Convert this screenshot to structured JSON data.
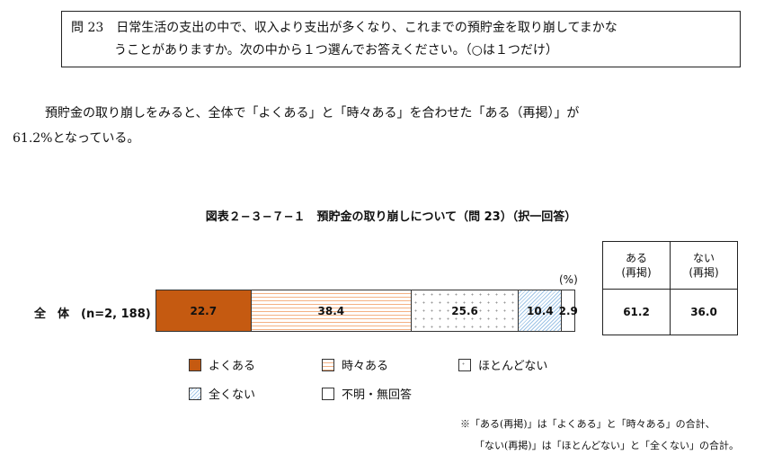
{
  "question": {
    "line1": "問 23　日常生活の支出の中で、収入より支出が多くなり、これまでの預貯金を取り崩してまかな",
    "line2": "うことがありますか。次の中から１つ選んでお答えください。（○は１つだけ）"
  },
  "paragraph": {
    "line1": "預貯金の取り崩しをみると、全体で「よくある」と「時々ある」を合わせた「ある（再掲）」が",
    "line2": "61.2%となっている。"
  },
  "chart_data": {
    "type": "stacked-bar-horizontal",
    "title": "図表２−３−７−１　預貯金の取り崩しについて（問 23）（択一回答）",
    "unit_label": "(%)",
    "categories": [
      "全　体　(n=2, 188)"
    ],
    "series": [
      {
        "name": "よくある",
        "values": [
          22.7
        ],
        "color": "#c55a11"
      },
      {
        "name": "時々ある",
        "values": [
          38.4
        ],
        "color": "#f4b183"
      },
      {
        "name": "ほとんどない",
        "values": [
          25.6
        ],
        "color": "#bfbfbf"
      },
      {
        "name": "全くない",
        "values": [
          10.4
        ],
        "color": "#9dc3e6"
      },
      {
        "name": "不明・無回答",
        "values": [
          2.9
        ],
        "color": "#ffffff"
      }
    ],
    "xlim": [
      0,
      100
    ],
    "legend_position": "bottom",
    "summary_table": {
      "headers": [
        "ある\n(再掲)",
        "ない\n(再掲)"
      ],
      "header_lines": [
        [
          "ある",
          "(再掲)"
        ],
        [
          "ない",
          "(再掲)"
        ]
      ],
      "values": [
        "61.2",
        "36.0"
      ]
    },
    "note": {
      "line1": "※「ある(再掲)」は「よくある」と「時々ある」の合計、",
      "line2": "「ない(再掲)」は「ほとんどない」と「全くない」の合計。"
    }
  }
}
